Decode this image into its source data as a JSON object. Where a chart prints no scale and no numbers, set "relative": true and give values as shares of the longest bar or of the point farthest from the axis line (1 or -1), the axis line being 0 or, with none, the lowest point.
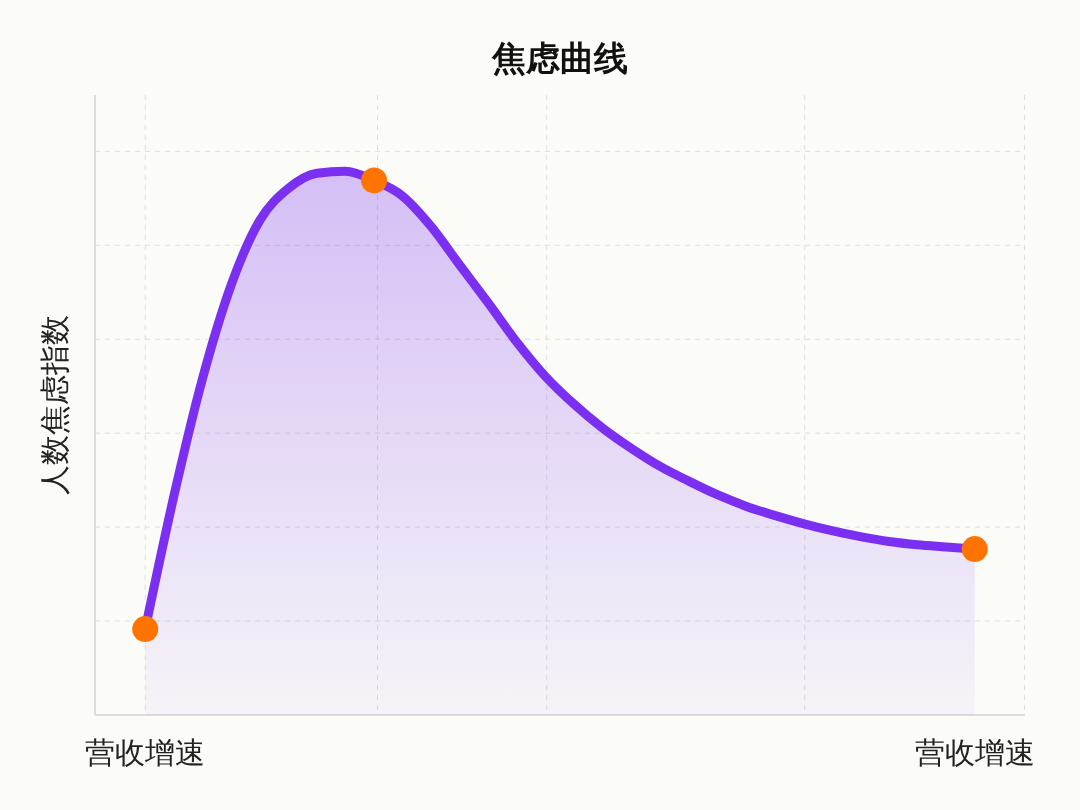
{
  "chart_data": {
    "type": "area",
    "title": "焦虑曲线",
    "ylabel": "人数焦虑指数",
    "relative": true,
    "grid": true,
    "categories": [
      "营收增速",
      null,
      null,
      null,
      null,
      null,
      null,
      null,
      null,
      null,
      null,
      null,
      null,
      null,
      null,
      null,
      null,
      null,
      null,
      null,
      null,
      null,
      null,
      null,
      null,
      null,
      null,
      null,
      null,
      "营收增速"
    ],
    "series": [
      {
        "color": "#7b2ff0",
        "marker": "none",
        "line_style": "solid",
        "values": [
          0.158,
          0.402,
          0.618,
          0.79,
          0.909,
          0.968,
          0.996,
          1,
          0.983,
          0.954,
          0.898,
          0.827,
          0.757,
          0.685,
          0.622,
          0.571,
          0.527,
          0.49,
          0.457,
          0.43,
          0.405,
          0.384,
          0.367,
          0.352,
          0.339,
          0.328,
          0.319,
          0.313,
          0.309,
          0.305
        ]
      },
      {
        "type": "scatter",
        "color": "#ff7400",
        "marker": "circle",
        "values": [
          0.158,
          null,
          null,
          null,
          null,
          null,
          null,
          null,
          0.983,
          null,
          null,
          null,
          null,
          null,
          null,
          null,
          null,
          null,
          null,
          null,
          null,
          null,
          null,
          null,
          null,
          null,
          null,
          null,
          null,
          0.305
        ]
      }
    ]
  }
}
